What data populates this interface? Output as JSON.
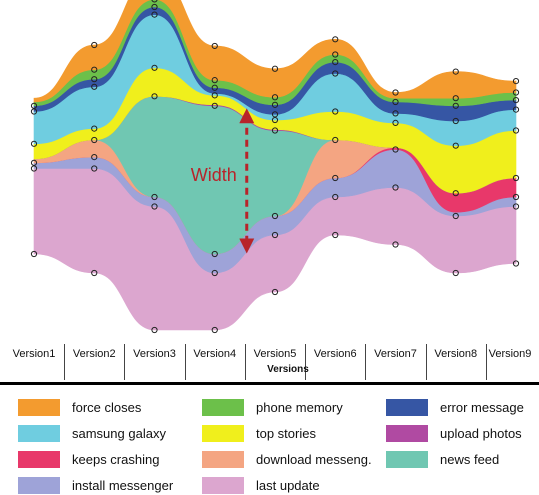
{
  "chart_data": {
    "type": "area",
    "x": [
      "Version1",
      "Version2",
      "Version3",
      "Version4",
      "Version5",
      "Version6",
      "Version7",
      "Version8",
      "Version9"
    ],
    "xlabel": "Versions",
    "baseline": [
      -4,
      -5,
      -8,
      -8,
      -6,
      -3,
      -3.5,
      -5,
      -4.5
    ],
    "series": [
      {
        "name": "last update",
        "color": "#dca6cf",
        "values": [
          4.5,
          5.5,
          6.5,
          3,
          3,
          2,
          3,
          3,
          3
        ]
      },
      {
        "name": "install messenger",
        "color": "#9ea3d8",
        "values": [
          0.3,
          0.6,
          0.5,
          1,
          1,
          1,
          2,
          0.2,
          0.5
        ]
      },
      {
        "name": "keeps crashing",
        "color": "#e8386a",
        "values": [
          0,
          0,
          0,
          0,
          0,
          0,
          0.1,
          1,
          1
        ]
      },
      {
        "name": "download messeng.",
        "color": "#f4a582",
        "values": [
          0.2,
          0.9,
          0,
          0,
          0,
          2,
          0,
          0,
          0
        ]
      },
      {
        "name": "news feed",
        "color": "#70c7b2",
        "values": [
          0,
          0,
          5.3,
          7.8,
          4.5,
          0,
          0,
          0,
          0
        ]
      },
      {
        "name": "upload photos",
        "color": "#b04aa2",
        "values": [
          0,
          0,
          0,
          0.05,
          0.05,
          0,
          0,
          0,
          0
        ]
      },
      {
        "name": "top stories",
        "color": "#f0ef1c",
        "values": [
          0.8,
          0.6,
          1.5,
          0.5,
          0.5,
          1.5,
          1.3,
          2.5,
          2.5
        ]
      },
      {
        "name": "samsung galaxy",
        "color": "#6fcde0",
        "values": [
          1.7,
          2.2,
          2.8,
          0.1,
          0.3,
          2,
          0.5,
          1.3,
          1.1
        ]
      },
      {
        "name": "error message",
        "color": "#3656a4",
        "values": [
          0.3,
          0.4,
          0.4,
          0.3,
          0.5,
          0.6,
          0.6,
          0.8,
          0.5
        ]
      },
      {
        "name": "phone memory",
        "color": "#6cc04a",
        "values": [
          0.2,
          0.5,
          0.4,
          0.4,
          0.4,
          0.4,
          0.2,
          0.4,
          0.4
        ]
      },
      {
        "name": "force closes",
        "color": "#f39b2f",
        "values": [
          0.2,
          1.3,
          1.4,
          1.8,
          1.5,
          0.8,
          0.3,
          1.4,
          0.6
        ]
      }
    ],
    "annotation": "Width",
    "legend_position": "bottom",
    "grid": false
  },
  "legend": [
    {
      "label": "force closes",
      "color": "#f39b2f"
    },
    {
      "label": "phone memory",
      "color": "#6cc04a"
    },
    {
      "label": "error message",
      "color": "#3656a4"
    },
    {
      "label": "samsung galaxy",
      "color": "#6fcde0"
    },
    {
      "label": "top stories",
      "color": "#f0ef1c"
    },
    {
      "label": "upload photos",
      "color": "#b04aa2"
    },
    {
      "label": "keeps crashing",
      "color": "#e8386a"
    },
    {
      "label": "download messeng.",
      "color": "#f4a582"
    },
    {
      "label": "news feed",
      "color": "#70c7b2"
    },
    {
      "label": "install messenger",
      "color": "#9ea3d8"
    },
    {
      "label": "last update",
      "color": "#dca6cf"
    }
  ]
}
